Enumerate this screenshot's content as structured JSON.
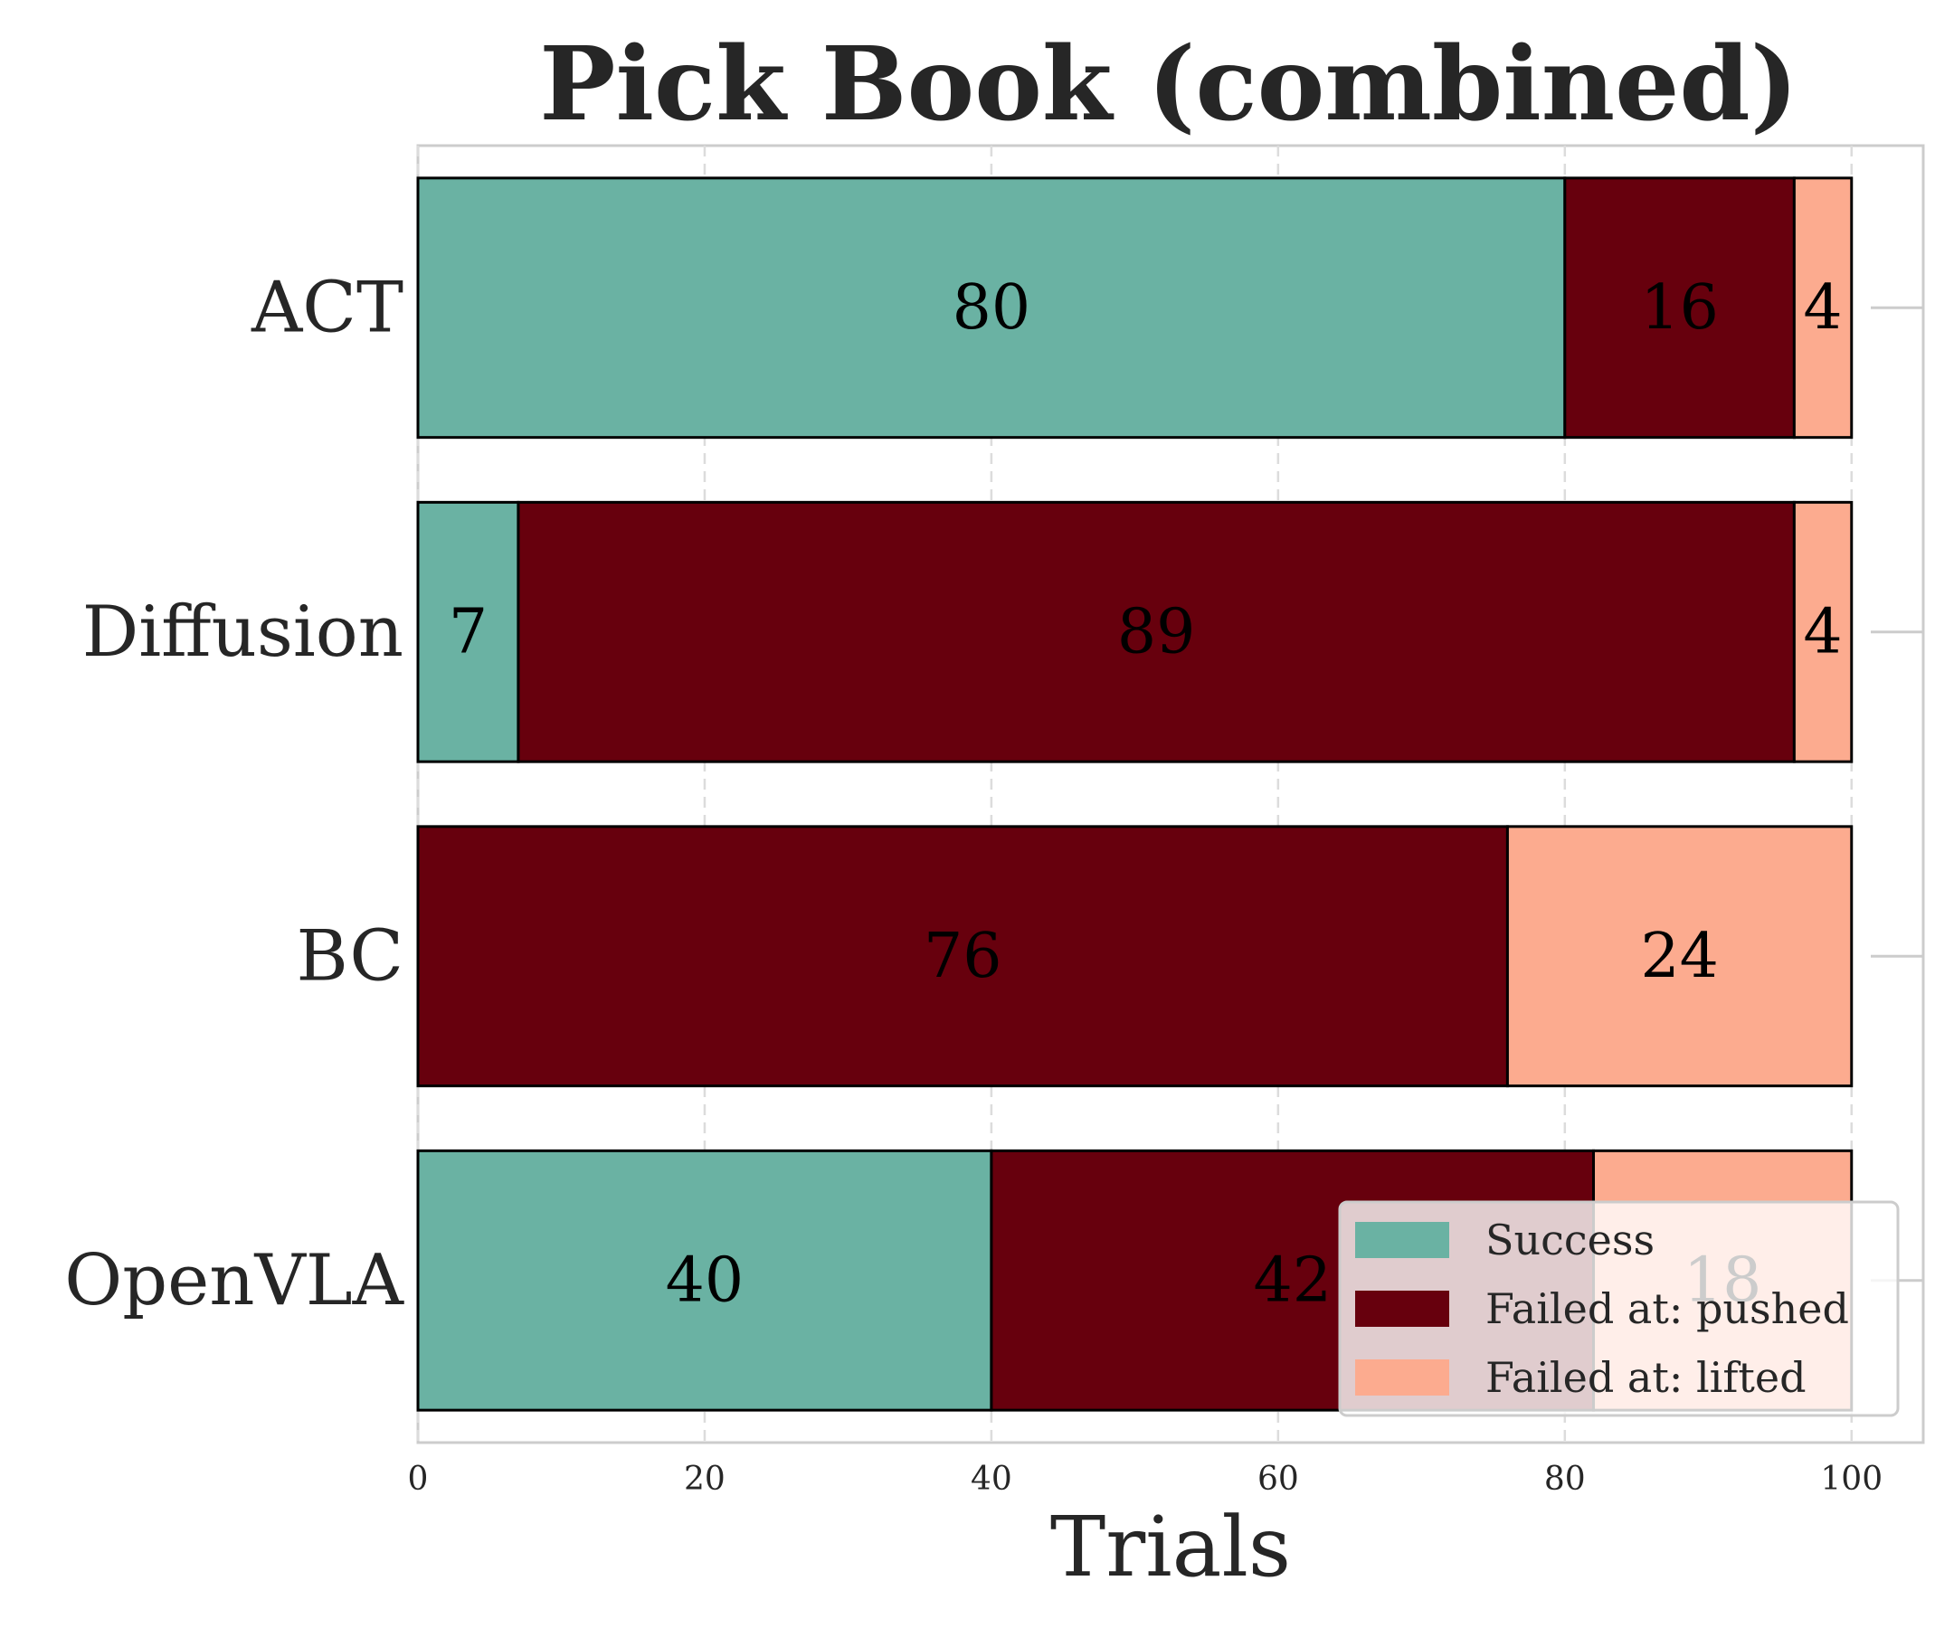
{
  "chart_data": {
    "type": "bar",
    "orientation": "horizontal",
    "stacked": true,
    "title": "Pick Book (combined)",
    "xlabel": "Trials",
    "ylabel": "",
    "categories": [
      "ACT",
      "Diffusion",
      "BC",
      "OpenVLA"
    ],
    "series": [
      {
        "name": "Success",
        "color": "#6ab2a3",
        "values": [
          80,
          7,
          0,
          40
        ]
      },
      {
        "name": "Failed at: pushed",
        "color": "#67000d",
        "values": [
          16,
          89,
          76,
          42
        ]
      },
      {
        "name": "Failed at: lifted",
        "color": "#fcab8f",
        "values": [
          4,
          4,
          24,
          18
        ]
      }
    ],
    "xlim": [
      0,
      105
    ],
    "xticks": [
      "0",
      "20",
      "40",
      "60",
      "80",
      "100"
    ],
    "grid": "x-dashed",
    "legend": "lower-right"
  }
}
